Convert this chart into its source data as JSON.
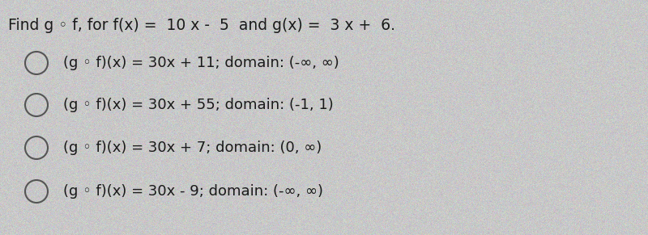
{
  "background_color": "#c8c8c8",
  "title_text": "Find g ◦ f, for f(x) =  10 x -  5  and g(x) =  3 x +  6.",
  "options": [
    "(g ◦ f)(x) = 30x + 11; domain: (-∞, ∞)",
    "(g ◦ f)(x) = 30x + 55; domain: (-1, 1)",
    "(g ◦ f)(x) = 30x + 7; domain: (0, ∞)",
    "(g ◦ f)(x) = 30x - 9; domain: (-∞, ∞)"
  ],
  "title_fontsize": 13.5,
  "option_fontsize": 13.0,
  "text_color": "#1a1a1a",
  "circle_edge_color": "#555555",
  "circle_linewidth": 1.5,
  "figwidth": 8.0,
  "figheight": 2.91,
  "dpi": 100
}
